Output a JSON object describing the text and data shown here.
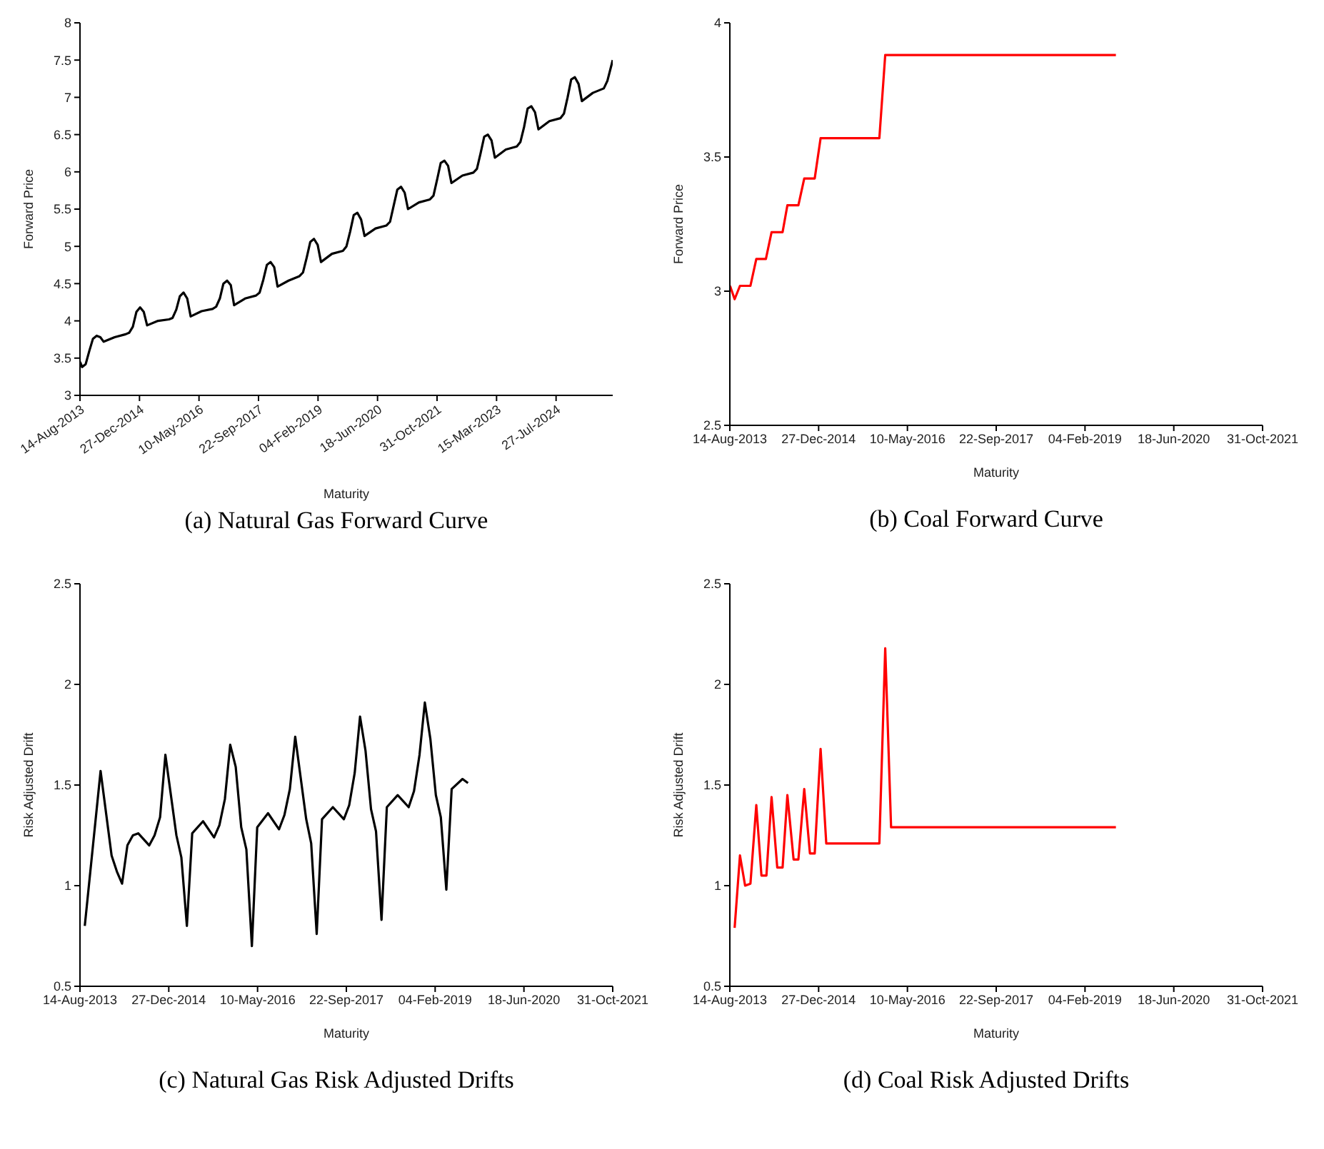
{
  "chart_data": [
    {
      "type": "line",
      "title": "(a)  Natural Gas Forward Curve",
      "xlabel": "Maturity",
      "ylabel": "Forward Price",
      "marker": "none",
      "line_style": "solid",
      "legend": false,
      "grid": false,
      "xlim": [
        "2013-08-14",
        "2025-11-15"
      ],
      "xticks": [
        {
          "value": "2013-08-14",
          "label": "14-Aug-2013"
        },
        {
          "value": "2014-12-27",
          "label": "27-Dec-2014"
        },
        {
          "value": "2016-05-10",
          "label": "10-May-2016"
        },
        {
          "value": "2017-09-22",
          "label": "22-Sep-2017"
        },
        {
          "value": "2019-02-04",
          "label": "04-Feb-2019"
        },
        {
          "value": "2020-06-18",
          "label": "18-Jun-2020"
        },
        {
          "value": "2021-10-31",
          "label": "31-Oct-2021"
        },
        {
          "value": "2023-03-15",
          "label": "15-Mar-2023"
        },
        {
          "value": "2024-07-27",
          "label": "27-Jul-2024"
        }
      ],
      "ylim": [
        3,
        8
      ],
      "yticks": [
        3,
        3.5,
        4,
        4.5,
        5,
        5.5,
        6,
        6.5,
        7,
        7.5,
        8
      ],
      "series": [
        {
          "color": "#000000",
          "x": [
            "2013-08-15",
            "2013-09",
            "2013-10",
            "2013-11",
            "2013-12",
            "2014-01",
            "2014-02",
            "2014-03",
            "2014-06",
            "2014-09",
            "2014-10",
            "2014-11",
            "2014-12",
            "2015-01",
            "2015-02",
            "2015-03",
            "2015-06",
            "2015-09",
            "2015-10",
            "2015-11",
            "2015-12",
            "2016-01",
            "2016-02",
            "2016-03",
            "2016-06",
            "2016-09",
            "2016-10",
            "2016-11",
            "2016-12",
            "2017-01",
            "2017-02",
            "2017-03",
            "2017-06",
            "2017-09",
            "2017-10",
            "2017-11",
            "2017-12",
            "2018-01",
            "2018-02",
            "2018-03",
            "2018-06",
            "2018-09",
            "2018-10",
            "2018-11",
            "2018-12",
            "2019-01",
            "2019-02",
            "2019-03",
            "2019-06",
            "2019-09",
            "2019-10",
            "2019-11",
            "2019-12",
            "2020-01",
            "2020-02",
            "2020-03",
            "2020-06",
            "2020-09",
            "2020-10",
            "2020-11",
            "2020-12",
            "2021-01",
            "2021-02",
            "2021-03",
            "2021-06",
            "2021-09",
            "2021-10",
            "2021-11",
            "2021-12",
            "2022-01",
            "2022-02",
            "2022-03",
            "2022-06",
            "2022-09",
            "2022-10",
            "2022-11",
            "2022-12",
            "2023-01",
            "2023-02",
            "2023-03",
            "2023-06",
            "2023-09",
            "2023-10",
            "2023-11",
            "2023-12",
            "2024-01",
            "2024-02",
            "2024-03",
            "2024-06",
            "2024-09",
            "2024-10",
            "2024-11",
            "2024-12",
            "2025-01",
            "2025-02",
            "2025-03",
            "2025-06",
            "2025-09",
            "2025-10",
            "2025-11-15"
          ],
          "values": [
            3.45,
            3.38,
            3.42,
            3.6,
            3.76,
            3.8,
            3.78,
            3.72,
            3.78,
            3.82,
            3.84,
            3.92,
            4.12,
            4.18,
            4.12,
            3.94,
            4.0,
            4.02,
            4.04,
            4.15,
            4.33,
            4.38,
            4.3,
            4.06,
            4.13,
            4.16,
            4.19,
            4.3,
            4.5,
            4.54,
            4.48,
            4.21,
            4.3,
            4.34,
            4.38,
            4.55,
            4.75,
            4.79,
            4.72,
            4.46,
            4.54,
            4.6,
            4.65,
            4.85,
            5.06,
            5.1,
            5.02,
            4.79,
            4.9,
            4.94,
            5.0,
            5.2,
            5.42,
            5.45,
            5.36,
            5.14,
            5.24,
            5.28,
            5.33,
            5.55,
            5.76,
            5.8,
            5.72,
            5.5,
            5.59,
            5.63,
            5.68,
            5.9,
            6.12,
            6.15,
            6.08,
            5.85,
            5.95,
            5.99,
            6.04,
            6.25,
            6.47,
            6.5,
            6.42,
            6.19,
            6.3,
            6.34,
            6.4,
            6.6,
            6.85,
            6.88,
            6.8,
            6.57,
            6.68,
            6.72,
            6.78,
            7.0,
            7.24,
            7.27,
            7.18,
            6.95,
            7.06,
            7.12,
            7.22,
            7.5
          ]
        }
      ]
    },
    {
      "type": "line",
      "title": "(b)  Coal Forward Curve",
      "xlabel": "Maturity",
      "ylabel": "Forward Price",
      "marker": "none",
      "line_style": "solid",
      "legend": false,
      "grid": false,
      "xlim": [
        "2013-08-14",
        "2021-10-31"
      ],
      "xticks": [
        {
          "value": "2013-08-14",
          "label": "14-Aug-2013"
        },
        {
          "value": "2014-12-27",
          "label": "27-Dec-2014"
        },
        {
          "value": "2016-05-10",
          "label": "10-May-2016"
        },
        {
          "value": "2017-09-22",
          "label": "22-Sep-2017"
        },
        {
          "value": "2019-02-04",
          "label": "04-Feb-2019"
        },
        {
          "value": "2020-06-18",
          "label": "18-Jun-2020"
        },
        {
          "value": "2021-10-31",
          "label": "31-Oct-2021"
        }
      ],
      "ylim": [
        2.5,
        4
      ],
      "yticks": [
        2.5,
        3,
        3.5,
        4
      ],
      "series": [
        {
          "color": "#ff0000",
          "x": [
            "2013-08-15",
            "2013-09-10",
            "2013-10-10",
            "2013-12-08",
            "2014-01-10",
            "2014-03-05",
            "2014-04-06",
            "2014-06-07",
            "2014-07-04",
            "2014-09-04",
            "2014-10-07",
            "2014-12-05",
            "2015-01-07",
            "2015-12-04",
            "2016-01-06",
            "2019-07-28"
          ],
          "values": [
            3.02,
            2.97,
            3.02,
            3.02,
            3.12,
            3.12,
            3.22,
            3.22,
            3.32,
            3.32,
            3.42,
            3.42,
            3.57,
            3.57,
            3.88,
            3.88
          ]
        }
      ]
    },
    {
      "type": "line",
      "title": "(c)  Natural Gas Risk Adjusted Drifts",
      "xlabel": "Maturity",
      "ylabel": "Risk Adjusted Drift",
      "marker": "none",
      "line_style": "solid",
      "legend": false,
      "grid": false,
      "xlim": [
        "2013-08-14",
        "2021-10-31"
      ],
      "xticks": [
        {
          "value": "2013-08-14",
          "label": "14-Aug-2013"
        },
        {
          "value": "2014-12-27",
          "label": "27-Dec-2014"
        },
        {
          "value": "2016-05-10",
          "label": "10-May-2016"
        },
        {
          "value": "2017-09-22",
          "label": "22-Sep-2017"
        },
        {
          "value": "2019-02-04",
          "label": "04-Feb-2019"
        },
        {
          "value": "2020-06-18",
          "label": "18-Jun-2020"
        },
        {
          "value": "2021-10-31",
          "label": "31-Oct-2021"
        }
      ],
      "ylim": [
        0.5,
        2.5
      ],
      "yticks": [
        0.5,
        1,
        1.5,
        2,
        2.5
      ],
      "series": [
        {
          "color": "#000000",
          "x": [
            "2013-09-10",
            "2013-12-08",
            "2014-02-08",
            "2014-03-10",
            "2014-04-08",
            "2014-05-08",
            "2014-06-08",
            "2014-07-08",
            "2014-09-08",
            "2014-10-08",
            "2014-11-08",
            "2014-12-08",
            "2015-02-08",
            "2015-03-08",
            "2015-04-08",
            "2015-05-08",
            "2015-07-08",
            "2015-09-08",
            "2015-10-08",
            "2015-11-08",
            "2015-12-08",
            "2016-01-08",
            "2016-02-08",
            "2016-03-08",
            "2016-04-08",
            "2016-05-08",
            "2016-07-08",
            "2016-09-08",
            "2016-10-08",
            "2016-11-08",
            "2016-12-08",
            "2017-02-08",
            "2017-03-08",
            "2017-04-08",
            "2017-05-08",
            "2017-07-08",
            "2017-09-08",
            "2017-10-08",
            "2017-11-08",
            "2017-12-08",
            "2018-01-08",
            "2018-02-08",
            "2018-03-08",
            "2018-04-08",
            "2018-05-08",
            "2018-07-08",
            "2018-09-08",
            "2018-10-08",
            "2018-11-08",
            "2018-12-08",
            "2019-01-08",
            "2019-02-08",
            "2019-03-08",
            "2019-04-08",
            "2019-05-08",
            "2019-07-08",
            "2019-08-08"
          ],
          "values": [
            0.8,
            1.57,
            1.15,
            1.07,
            1.01,
            1.2,
            1.25,
            1.26,
            1.2,
            1.25,
            1.34,
            1.65,
            1.25,
            1.14,
            0.8,
            1.26,
            1.32,
            1.24,
            1.3,
            1.43,
            1.7,
            1.59,
            1.29,
            1.18,
            0.7,
            1.29,
            1.36,
            1.28,
            1.35,
            1.48,
            1.74,
            1.33,
            1.21,
            0.76,
            1.33,
            1.39,
            1.33,
            1.4,
            1.56,
            1.84,
            1.67,
            1.38,
            1.27,
            0.83,
            1.39,
            1.45,
            1.39,
            1.47,
            1.65,
            1.91,
            1.73,
            1.45,
            1.34,
            0.98,
            1.48,
            1.53,
            1.51
          ]
        }
      ]
    },
    {
      "type": "line",
      "title": "(d)  Coal Risk Adjusted Drifts",
      "xlabel": "Maturity",
      "ylabel": "Risk Adjusted Drift",
      "marker": "none",
      "line_style": "solid",
      "legend": false,
      "grid": false,
      "xlim": [
        "2013-08-14",
        "2021-10-31"
      ],
      "xticks": [
        {
          "value": "2013-08-14",
          "label": "14-Aug-2013"
        },
        {
          "value": "2014-12-27",
          "label": "27-Dec-2014"
        },
        {
          "value": "2016-05-10",
          "label": "10-May-2016"
        },
        {
          "value": "2017-09-22",
          "label": "22-Sep-2017"
        },
        {
          "value": "2019-02-04",
          "label": "04-Feb-2019"
        },
        {
          "value": "2020-06-18",
          "label": "18-Jun-2020"
        },
        {
          "value": "2021-10-31",
          "label": "31-Oct-2021"
        }
      ],
      "ylim": [
        0.5,
        2.5
      ],
      "yticks": [
        0.5,
        1,
        1.5,
        2,
        2.5
      ],
      "series": [
        {
          "color": "#ff0000",
          "x": [
            "2013-09-10",
            "2013-10-10",
            "2013-11-08",
            "2013-12-08",
            "2014-01-10",
            "2014-02-08",
            "2014-03-08",
            "2014-04-06",
            "2014-05-08",
            "2014-06-07",
            "2014-07-04",
            "2014-08-08",
            "2014-09-04",
            "2014-10-07",
            "2014-11-08",
            "2014-12-05",
            "2015-01-07",
            "2015-02-08",
            "2015-12-04",
            "2016-01-06",
            "2016-02-08",
            "2019-07-28"
          ],
          "values": [
            0.79,
            1.15,
            1.0,
            1.01,
            1.4,
            1.05,
            1.05,
            1.44,
            1.09,
            1.09,
            1.45,
            1.13,
            1.13,
            1.48,
            1.16,
            1.16,
            1.68,
            1.21,
            1.21,
            2.18,
            1.29,
            1.29
          ]
        }
      ]
    }
  ]
}
